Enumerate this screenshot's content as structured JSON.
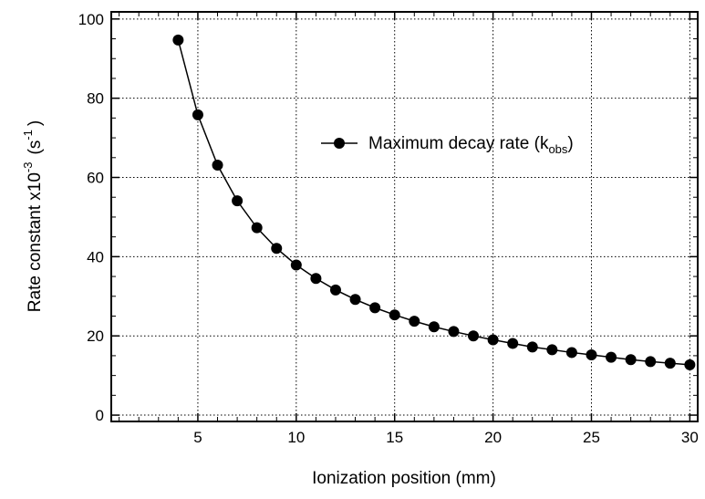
{
  "chart_data": {
    "type": "line",
    "x_label": "Ionization position (mm)",
    "y_label": {
      "text": "Rate constant x10",
      "sup1": "-3",
      "mid": "(s",
      "sup2": "-1",
      "end": ")"
    },
    "x": [
      4,
      5,
      6,
      7,
      8,
      9,
      10,
      11,
      12,
      13,
      14,
      15,
      16,
      17,
      18,
      19,
      20,
      21,
      22,
      23,
      24,
      25,
      26,
      27,
      28,
      29,
      30
    ],
    "series": [
      {
        "name": {
          "text": "Maximum decay rate (k",
          "sub": "obs",
          "end": ")"
        },
        "color": "#000000",
        "values": [
          94.7,
          75.8,
          63.1,
          54.1,
          47.3,
          42.1,
          37.9,
          34.5,
          31.6,
          29.2,
          27.1,
          25.3,
          23.7,
          22.3,
          21.1,
          20.0,
          19.0,
          18.1,
          17.2,
          16.5,
          15.8,
          15.2,
          14.6,
          14.0,
          13.5,
          13.1,
          12.7
        ]
      }
    ],
    "xlim": [
      0.6,
      30.4
    ],
    "ylim": [
      -1.6,
      101.8
    ],
    "xticks": [
      5,
      10,
      15,
      20,
      25,
      30
    ],
    "yticks": [
      0,
      20,
      40,
      60,
      80,
      100
    ],
    "xminorticks": [
      1,
      2,
      3,
      4,
      6,
      7,
      8,
      9,
      11,
      12,
      13,
      14,
      16,
      17,
      18,
      19,
      21,
      22,
      23,
      24,
      26,
      27,
      28,
      29
    ],
    "yminorticks": [
      5,
      10,
      15,
      25,
      30,
      35,
      45,
      50,
      55,
      65,
      70,
      75,
      85,
      90,
      95
    ],
    "grid": true,
    "legend": "upper right"
  }
}
